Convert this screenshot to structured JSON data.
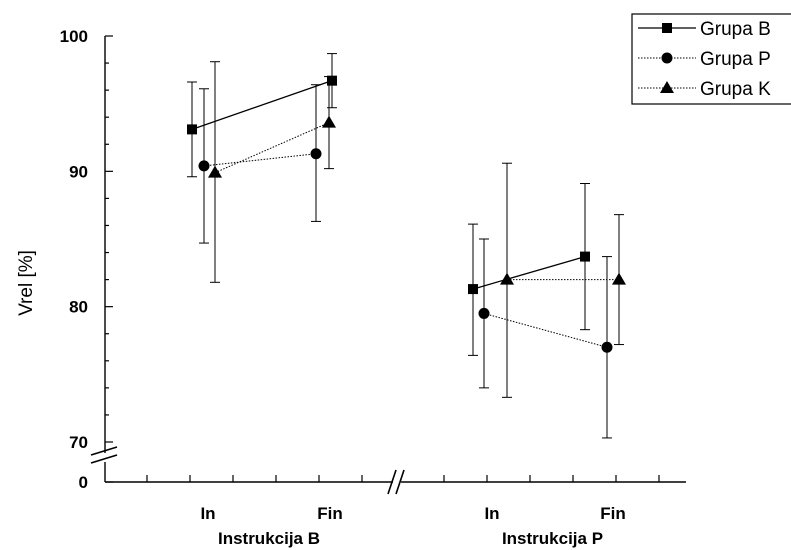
{
  "chart_data": {
    "type": "line",
    "ylabel": "Vrel [%]",
    "xlabel": "",
    "title": "",
    "ylim": [
      70,
      100
    ],
    "y_ticks": [
      "0",
      "70",
      "80",
      "90",
      "100"
    ],
    "y_axis_break": true,
    "x_axis_break": true,
    "panels": [
      {
        "label": "Instrukcija B",
        "categories": [
          "In",
          "Fin"
        ]
      },
      {
        "label": "Instrukcija P",
        "categories": [
          "In",
          "Fin"
        ]
      }
    ],
    "series": [
      {
        "name": "Grupa B",
        "marker": "square",
        "line": "solid",
        "panels": [
          {
            "values": [
              93.1,
              96.7
            ],
            "err_low": [
              89.6,
              94.7
            ],
            "err_high": [
              96.6,
              98.7
            ]
          },
          {
            "values": [
              81.3,
              83.7
            ],
            "err_low": [
              76.4,
              78.3
            ],
            "err_high": [
              86.1,
              89.1
            ]
          }
        ]
      },
      {
        "name": "Grupa P",
        "marker": "circle",
        "line": "dotted",
        "panels": [
          {
            "values": [
              90.4,
              91.3
            ],
            "err_low": [
              84.7,
              86.3
            ],
            "err_high": [
              96.1,
              96.4
            ]
          },
          {
            "values": [
              79.5,
              77.0
            ],
            "err_low": [
              74.0,
              70.3
            ],
            "err_high": [
              85.0,
              83.7
            ]
          }
        ]
      },
      {
        "name": "Grupa K",
        "marker": "triangle",
        "line": "dotted",
        "panels": [
          {
            "values": [
              89.9,
              93.6
            ],
            "err_low": [
              81.8,
              90.2
            ],
            "err_high": [
              98.1,
              97.0
            ]
          },
          {
            "values": [
              82.0,
              82.0
            ],
            "err_low": [
              73.3,
              77.2
            ],
            "err_high": [
              90.6,
              86.8
            ]
          }
        ]
      }
    ],
    "legend_position": "top-right"
  }
}
